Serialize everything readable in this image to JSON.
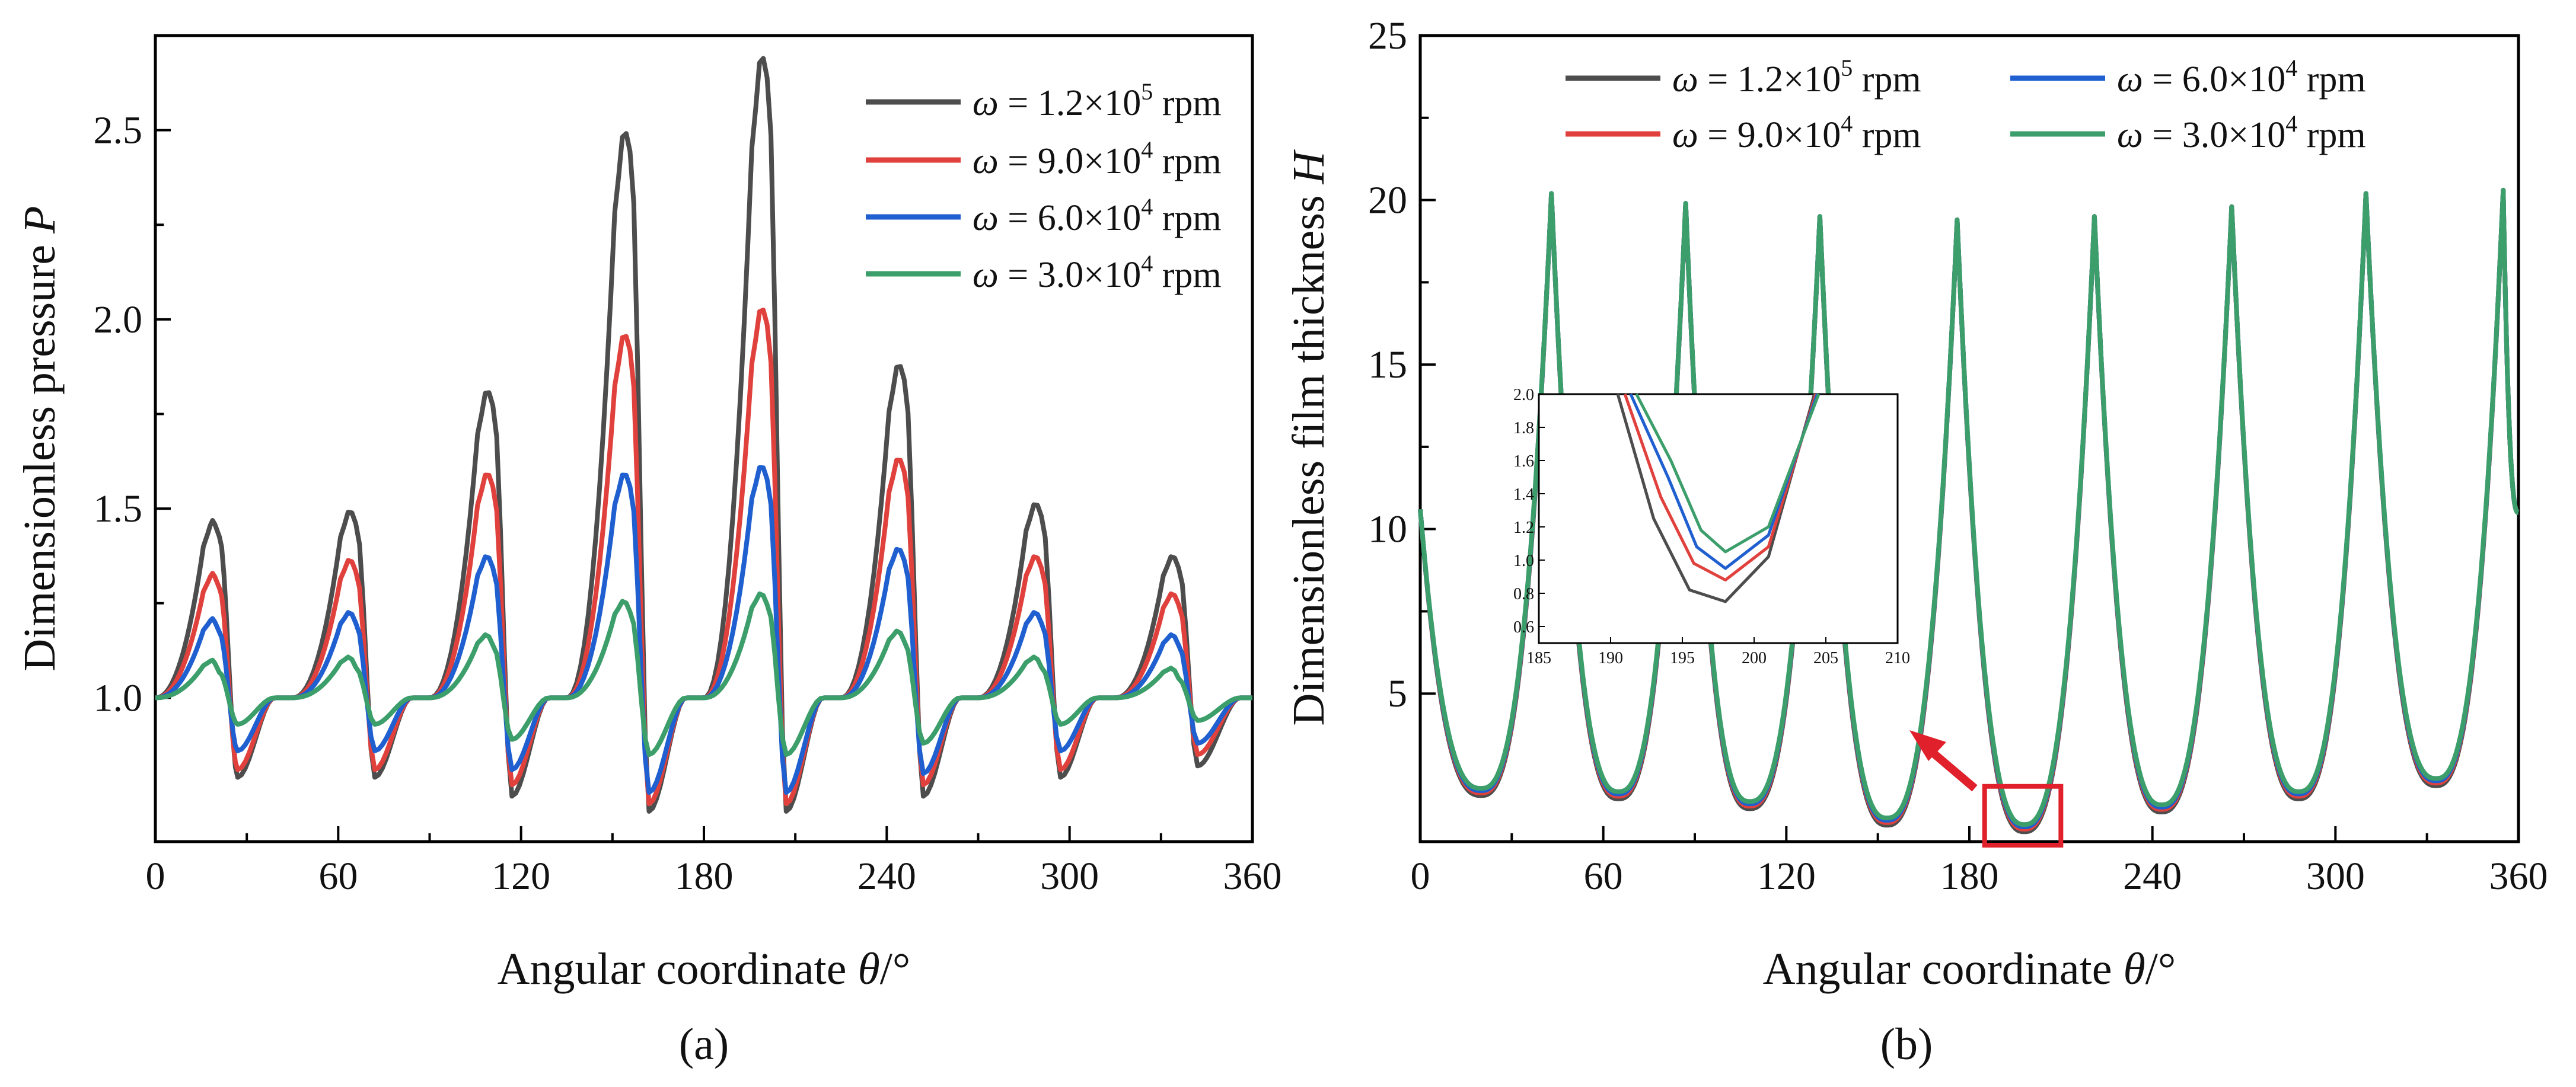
{
  "chart_data": [
    {
      "type": "line",
      "panel_label": "(a)",
      "xlabel_main": "Angular coordinate ",
      "xlabel_symbol": "θ",
      "xlabel_unit": "/°",
      "ylabel_main": "Dimensionless pressure ",
      "ylabel_symbol": "P",
      "xlim": [
        0,
        360
      ],
      "ylim": [
        0.62,
        2.75
      ],
      "xticks": [
        "0",
        "60",
        "120",
        "180",
        "240",
        "300",
        "360"
      ],
      "xtick_values": [
        0,
        60,
        120,
        180,
        240,
        300,
        360
      ],
      "yticks": [
        "1.0",
        "1.5",
        "2.0",
        "2.5"
      ],
      "ytick_values": [
        1.0,
        1.5,
        2.0,
        2.5
      ],
      "legend_position": "top-right",
      "lobe_centers": [
        20,
        65,
        110,
        155,
        200,
        245,
        290,
        335
      ],
      "series": [
        {
          "name": "ω = 1.2×10⁵ rpm",
          "color": "#4d4d4d",
          "peaks": [
            1.47,
            1.5,
            1.82,
            2.51,
            2.71,
            1.89,
            1.52,
            1.38
          ],
          "troughs": [
            0.79,
            0.79,
            0.74,
            0.7,
            0.7,
            0.74,
            0.79,
            0.82
          ]
        },
        {
          "name": "ω = 9.0×10⁴ rpm",
          "color": "#e0413d",
          "peaks": [
            1.33,
            1.37,
            1.6,
            1.97,
            2.04,
            1.64,
            1.38,
            1.28
          ],
          "troughs": [
            0.81,
            0.81,
            0.77,
            0.72,
            0.72,
            0.77,
            0.81,
            0.85
          ]
        },
        {
          "name": "ω = 6.0×10⁴ rpm",
          "color": "#1f5fcf",
          "peaks": [
            1.21,
            1.23,
            1.38,
            1.6,
            1.62,
            1.4,
            1.23,
            1.17
          ],
          "troughs": [
            0.86,
            0.86,
            0.81,
            0.75,
            0.75,
            0.8,
            0.86,
            0.88
          ]
        },
        {
          "name": "ω = 3.0×10⁴ rpm",
          "color": "#3c9e6a",
          "peaks": [
            1.1,
            1.11,
            1.17,
            1.26,
            1.28,
            1.18,
            1.11,
            1.08
          ],
          "troughs": [
            0.93,
            0.93,
            0.89,
            0.85,
            0.85,
            0.88,
            0.93,
            0.94
          ]
        }
      ],
      "legend": {
        "items": [
          {
            "omega": "ω",
            "eq": " = 1.2×10",
            "exp": "5",
            "unit": " rpm"
          },
          {
            "omega": "ω",
            "eq": " = 9.0×10",
            "exp": "4",
            "unit": " rpm"
          },
          {
            "omega": "ω",
            "eq": " = 6.0×10",
            "exp": "4",
            "unit": " rpm"
          },
          {
            "omega": "ω",
            "eq": " = 3.0×10",
            "exp": "4",
            "unit": " rpm"
          }
        ]
      }
    },
    {
      "type": "line",
      "panel_label": "(b)",
      "xlabel_main": "Angular coordinate ",
      "xlabel_symbol": "θ",
      "xlabel_unit": "/°",
      "ylabel_main": "Dimensionless film thickness ",
      "ylabel_symbol": "H",
      "xlim": [
        0,
        360
      ],
      "ylim": [
        0.5,
        25
      ],
      "xticks": [
        "0",
        "60",
        "120",
        "180",
        "240",
        "300",
        "360"
      ],
      "xtick_values": [
        0,
        60,
        120,
        180,
        240,
        300,
        360
      ],
      "yticks": [
        "5",
        "10",
        "15",
        "20",
        "25"
      ],
      "ytick_values": [
        5,
        10,
        15,
        20,
        25
      ],
      "legend_position": "top, two columns",
      "minima_theta": [
        20,
        65,
        108,
        153,
        198,
        243,
        288,
        333
      ],
      "minima_H": [
        1.9,
        1.8,
        1.5,
        1.0,
        0.8,
        1.4,
        1.8,
        2.2
      ],
      "maxima_theta": [
        43,
        87,
        131,
        176,
        221,
        266,
        310,
        355
      ],
      "maxima_H": [
        20.2,
        19.9,
        19.5,
        19.4,
        19.5,
        19.8,
        20.2,
        20.3
      ],
      "series": [
        {
          "name": "ω = 1.2×10⁵ rpm",
          "color": "#4d4d4d"
        },
        {
          "name": "ω = 9.0×10⁴ rpm",
          "color": "#e0413d"
        },
        {
          "name": "ω = 6.0×10⁴ rpm",
          "color": "#1f5fcf"
        },
        {
          "name": "ω = 3.0×10⁴ rpm",
          "color": "#3c9e6a"
        }
      ],
      "legend": {
        "items": [
          {
            "omega": "ω",
            "eq": " = 1.2×10",
            "exp": "5",
            "unit": " rpm"
          },
          {
            "omega": "ω",
            "eq": " = 6.0×10",
            "exp": "4",
            "unit": " rpm"
          },
          {
            "omega": "ω",
            "eq": " = 9.0×10",
            "exp": "4",
            "unit": " rpm"
          },
          {
            "omega": "ω",
            "eq": " = 3.0×10",
            "exp": "4",
            "unit": " rpm"
          }
        ]
      },
      "inset": {
        "xlim": [
          185,
          210
        ],
        "ylim": [
          0.5,
          2.0
        ],
        "xticks": [
          "185",
          "190",
          "195",
          "200",
          "205",
          "210"
        ],
        "xtick_values": [
          185,
          190,
          195,
          200,
          205,
          210
        ],
        "yticks": [
          "0.6",
          "0.8",
          "1.0",
          "1.2",
          "1.4",
          "1.6",
          "1.8",
          "2.0"
        ],
        "ytick_values": [
          0.6,
          0.8,
          1.0,
          1.2,
          1.4,
          1.6,
          1.8,
          2.0
        ],
        "zoom_box_theta": [
          185,
          210
        ],
        "zoom_box_H": [
          0.5,
          2.0
        ],
        "series": [
          {
            "name": "ω = 1.2×10⁵ rpm",
            "x": [
              190.5,
              193,
              195.5,
              198,
              201,
              204.2
            ],
            "y": [
              2.0,
              1.25,
              0.82,
              0.75,
              1.02,
              2.0
            ]
          },
          {
            "name": "ω = 9.0×10⁴ rpm",
            "x": [
              191,
              193.5,
              195.8,
              198,
              201,
              204.3
            ],
            "y": [
              2.0,
              1.38,
              0.98,
              0.88,
              1.08,
              2.0
            ]
          },
          {
            "name": "ω = 6.0×10⁴ rpm",
            "x": [
              191.4,
              194,
              196,
              198,
              201,
              204.4
            ],
            "y": [
              2.0,
              1.5,
              1.08,
              0.95,
              1.15,
              2.0
            ]
          },
          {
            "name": "ω = 3.0×10⁴ rpm",
            "x": [
              191.8,
              194.2,
              196.3,
              198,
              201,
              204.5
            ],
            "y": [
              2.0,
              1.6,
              1.18,
              1.05,
              1.2,
              2.0
            ]
          }
        ]
      }
    }
  ]
}
